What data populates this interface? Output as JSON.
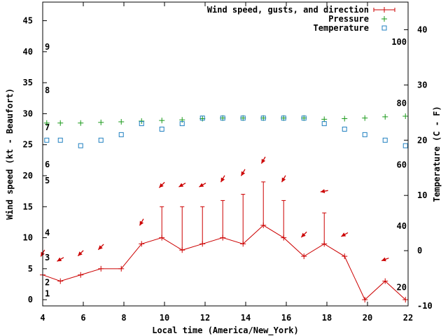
{
  "chart_data": {
    "type": "line",
    "xlabel": "Local time (America/New_York)",
    "ylabel_left": "Wind speed (kt - Beaufort)",
    "ylabel_right": "Temperature (C - F)",
    "xlim": [
      4,
      22
    ],
    "ylim_left": [
      -1,
      48
    ],
    "ylim_right_celsius": [
      -10,
      45
    ],
    "x_ticks": [
      4,
      6,
      8,
      10,
      12,
      14,
      16,
      18,
      20,
      22
    ],
    "y_ticks_left": [
      0,
      5,
      10,
      15,
      20,
      25,
      30,
      35,
      40,
      45
    ],
    "y_ticks_celsius": [
      -10,
      0,
      10,
      20,
      30,
      40
    ],
    "fahrenheit_labels": [
      {
        "label": "20",
        "celsius": -6.67
      },
      {
        "label": "40",
        "celsius": 4.44
      },
      {
        "label": "60",
        "celsius": 15.56
      },
      {
        "label": "80",
        "celsius": 26.67
      },
      {
        "label": "100",
        "celsius": 37.78
      }
    ],
    "beaufort_labels": [
      {
        "label": "1",
        "kt": 1
      },
      {
        "label": "2",
        "kt": 2.8
      },
      {
        "label": "3",
        "kt": 6.8
      },
      {
        "label": "4",
        "kt": 10.8
      },
      {
        "label": "5",
        "kt": 19.2
      },
      {
        "label": "6",
        "kt": 21.8
      },
      {
        "label": "7",
        "kt": 27.8
      },
      {
        "label": "8",
        "kt": 33.8
      },
      {
        "label": "9",
        "kt": 40.8
      }
    ],
    "legend": {
      "position": "top-right",
      "entries": [
        {
          "name": "Wind speed, gusts, and direction",
          "color": "#cc0000",
          "marker": "errorbar"
        },
        {
          "name": "Pressure",
          "color": "#1a9a1a",
          "marker": "plus"
        },
        {
          "name": "Temperature",
          "color": "#2080c0",
          "marker": "square"
        }
      ]
    },
    "series": [
      {
        "name": "Wind speed, gusts, and direction",
        "axis": "left",
        "color": "#cc0000",
        "x": [
          4,
          4.87,
          5.87,
          6.87,
          7.87,
          8.87,
          9.87,
          10.87,
          11.87,
          12.87,
          13.87,
          14.87,
          15.87,
          16.87,
          17.87,
          18.87,
          19.87,
          20.87,
          21.87
        ],
        "speed": [
          4,
          3,
          4,
          5,
          5,
          9,
          10,
          8,
          9,
          10,
          9,
          12,
          10,
          7,
          9,
          7,
          0,
          3,
          0
        ],
        "gust": [
          null,
          null,
          null,
          null,
          null,
          null,
          15,
          15,
          15,
          16,
          17,
          19,
          16,
          null,
          14,
          null,
          null,
          null,
          null
        ],
        "direction_deg": [
          30,
          60,
          45,
          45,
          null,
          30,
          45,
          60,
          60,
          30,
          30,
          30,
          30,
          45,
          80,
          60,
          null,
          70,
          null
        ]
      },
      {
        "name": "Pressure",
        "axis": "left",
        "color": "#1a9a1a",
        "x": [
          4.2,
          4.87,
          5.87,
          6.87,
          7.87,
          8.87,
          9.87,
          10.87,
          11.87,
          12.87,
          13.87,
          14.87,
          15.87,
          16.87,
          17.87,
          18.87,
          19.87,
          20.87,
          21.87
        ],
        "values": [
          28.5,
          28.5,
          28.5,
          28.6,
          28.7,
          28.8,
          28.9,
          29.0,
          29.2,
          29.3,
          29.3,
          29.3,
          29.3,
          29.3,
          29.1,
          29.2,
          29.3,
          29.5,
          29.6
        ]
      },
      {
        "name": "Temperature",
        "axis": "right",
        "unit": "C",
        "color": "#2080c0",
        "x": [
          4.2,
          4.87,
          5.87,
          6.87,
          7.87,
          8.87,
          9.87,
          10.87,
          11.87,
          12.87,
          13.87,
          14.87,
          15.87,
          16.87,
          17.87,
          18.87,
          19.87,
          20.87,
          21.87
        ],
        "values": [
          20,
          20,
          19,
          20,
          21,
          23,
          22,
          23,
          24,
          24,
          24,
          24,
          24,
          24,
          23,
          22,
          21,
          20,
          19
        ]
      }
    ]
  }
}
